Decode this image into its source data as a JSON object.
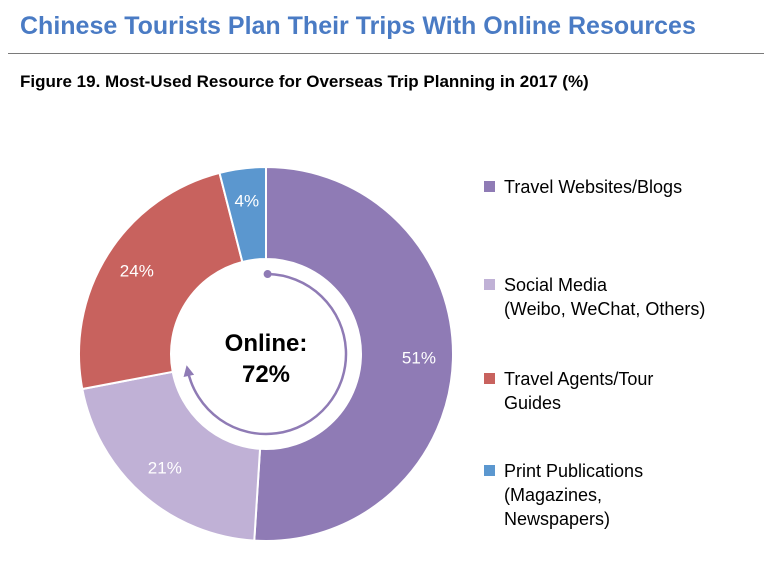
{
  "header": {
    "title": "Chinese Tourists Plan Their Trips With Online Resources"
  },
  "chart_data": {
    "type": "pie",
    "style": "donut",
    "title": "Figure 19. Most-Used Resource for Overseas Trip Planning in 2017 (%)",
    "categories": [
      "Travel Websites/Blogs",
      "Social Media\n(Weibo, WeChat, Others)",
      "Travel Agents/Tour\nGuides",
      "Print Publications\n(Magazines,\nNewspapers)"
    ],
    "values": [
      51,
      21,
      24,
      4
    ],
    "data_labels": [
      "51%",
      "21%",
      "24%",
      "4%"
    ],
    "colors": [
      "#8f7bb5",
      "#c0b1d6",
      "#c8625e",
      "#5b97cf"
    ],
    "center_label": {
      "line1": "Online:",
      "line2": "72%"
    },
    "legend_position": "right"
  }
}
